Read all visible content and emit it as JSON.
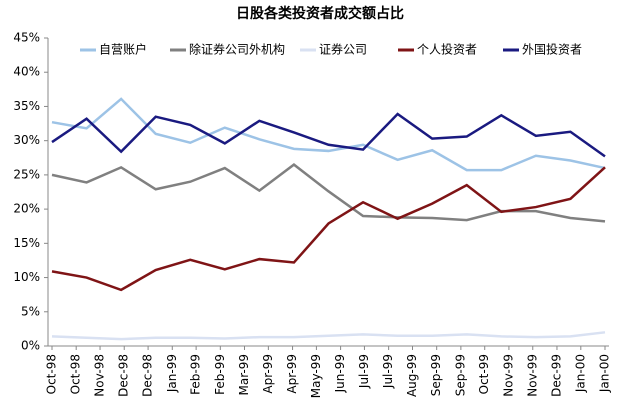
{
  "chart_data": {
    "type": "line",
    "title": "日股各类投资者成交额占比",
    "x": [
      0,
      1,
      2,
      3,
      4,
      5,
      6,
      7,
      8,
      9,
      10,
      11,
      12,
      13,
      14,
      15,
      16
    ],
    "xlim": [
      0,
      16
    ],
    "xticks": [
      {
        "value": 0,
        "label": "Oct-98"
      },
      {
        "value": 0.7,
        "label": "Oct-98"
      },
      {
        "value": 1.39,
        "label": "Nov-98"
      },
      {
        "value": 2.09,
        "label": "Dec-98"
      },
      {
        "value": 2.78,
        "label": "Dec-98"
      },
      {
        "value": 3.48,
        "label": "Jan-99"
      },
      {
        "value": 4.17,
        "label": "Feb-99"
      },
      {
        "value": 4.87,
        "label": "Feb-99"
      },
      {
        "value": 5.57,
        "label": "Mar-99"
      },
      {
        "value": 6.26,
        "label": "Apr-99"
      },
      {
        "value": 6.96,
        "label": "Apr-99"
      },
      {
        "value": 7.65,
        "label": "May-99"
      },
      {
        "value": 8.35,
        "label": "Jun-99"
      },
      {
        "value": 9.04,
        "label": "Jul-99"
      },
      {
        "value": 9.74,
        "label": "Jul-99"
      },
      {
        "value": 10.43,
        "label": "Aug-99"
      },
      {
        "value": 11.13,
        "label": "Sep-99"
      },
      {
        "value": 11.83,
        "label": "Sep-99"
      },
      {
        "value": 12.52,
        "label": "Oct-99"
      },
      {
        "value": 13.22,
        "label": "Nov-99"
      },
      {
        "value": 13.91,
        "label": "Nov-99"
      },
      {
        "value": 14.61,
        "label": "Dec-99"
      },
      {
        "value": 15.3,
        "label": "Jan-00"
      },
      {
        "value": 16,
        "label": "Jan-00"
      }
    ],
    "ylim": [
      0,
      45
    ],
    "yticks": [
      {
        "value": 0,
        "label": "0%"
      },
      {
        "value": 5,
        "label": "5%"
      },
      {
        "value": 10,
        "label": "10%"
      },
      {
        "value": 15,
        "label": "15%"
      },
      {
        "value": 20,
        "label": "20%"
      },
      {
        "value": 25,
        "label": "25%"
      },
      {
        "value": 30,
        "label": "30%"
      },
      {
        "value": 35,
        "label": "35%"
      },
      {
        "value": 40,
        "label": "40%"
      },
      {
        "value": 45,
        "label": "45%"
      }
    ],
    "series": [
      {
        "name": "自营账户",
        "color": "#9dc3e6",
        "values": [
          32.7,
          31.8,
          36.1,
          31.0,
          29.7,
          31.9,
          30.2,
          28.8,
          28.5,
          29.4,
          27.2,
          28.6,
          25.7,
          25.7,
          27.8,
          27.1,
          26.0
        ]
      },
      {
        "name": "除证券公司外机构",
        "color": "#808080",
        "values": [
          25.0,
          23.9,
          26.1,
          22.9,
          24.0,
          26.0,
          22.7,
          26.5,
          22.6,
          19.0,
          18.8,
          18.7,
          18.4,
          19.7,
          19.7,
          18.7,
          18.2
        ]
      },
      {
        "name": "证券公司",
        "color": "#d9e1f2",
        "values": [
          1.4,
          1.2,
          1.0,
          1.2,
          1.2,
          1.1,
          1.3,
          1.3,
          1.5,
          1.7,
          1.5,
          1.5,
          1.7,
          1.4,
          1.3,
          1.4,
          2.0
        ]
      },
      {
        "name": "个人投资者",
        "color": "#7f1416",
        "values": [
          10.9,
          10.0,
          8.2,
          11.1,
          12.6,
          11.2,
          12.7,
          12.2,
          17.9,
          21.0,
          18.6,
          20.8,
          23.5,
          19.6,
          20.3,
          21.5,
          26.1
        ]
      },
      {
        "name": "外国投资者",
        "color": "#1a1a80",
        "values": [
          29.8,
          33.2,
          28.4,
          33.5,
          32.3,
          29.6,
          32.9,
          31.2,
          29.4,
          28.7,
          33.9,
          30.3,
          30.6,
          33.7,
          30.7,
          31.3,
          27.7
        ]
      }
    ]
  }
}
